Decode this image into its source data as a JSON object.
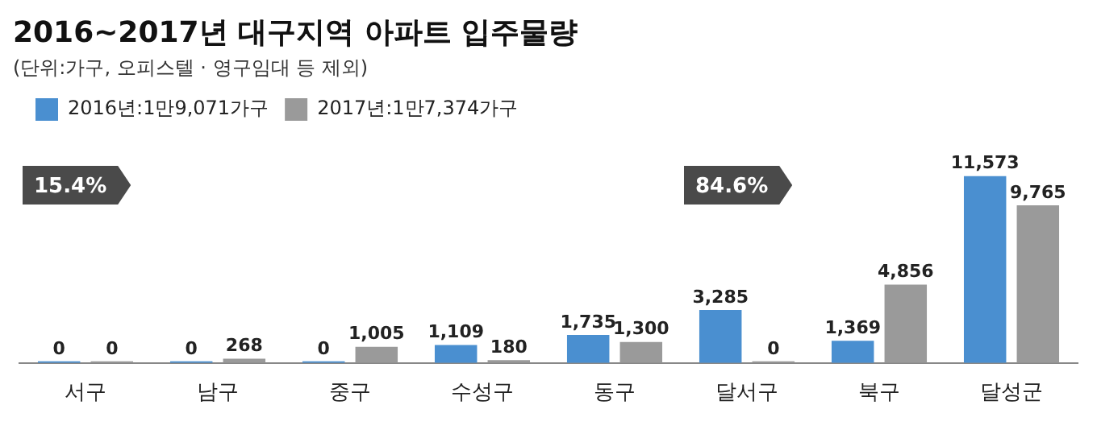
{
  "chart_data": {
    "type": "bar",
    "title": "2016~2017년 대구지역 아파트 입주물량",
    "subtitle": "(단위:가구, 오피스텔 · 영구임대 등 제외)",
    "categories": [
      "서구",
      "남구",
      "중구",
      "수성구",
      "동구",
      "달서구",
      "북구",
      "달성군"
    ],
    "series": [
      {
        "name": "2016년:1만9,071가구",
        "color": "#4a8fd0",
        "values": [
          0,
          0,
          0,
          1109,
          1735,
          3285,
          1369,
          11573
        ],
        "value_labels": [
          "0",
          "0",
          "0",
          "1,109",
          "1,735",
          "3,285",
          "1,369",
          "11,573"
        ]
      },
      {
        "name": "2017년:1만7,374가구",
        "color": "#9a9a9a",
        "values": [
          0,
          268,
          1005,
          180,
          1300,
          0,
          4856,
          9765
        ],
        "value_labels": [
          "0",
          "268",
          "1,005",
          "180",
          "1,300",
          "0",
          "4,856",
          "9,765"
        ]
      }
    ],
    "annotations": [
      "15.4%",
      "84.6%"
    ],
    "legend": "top left",
    "tick_labels": "x",
    "grid": false
  }
}
